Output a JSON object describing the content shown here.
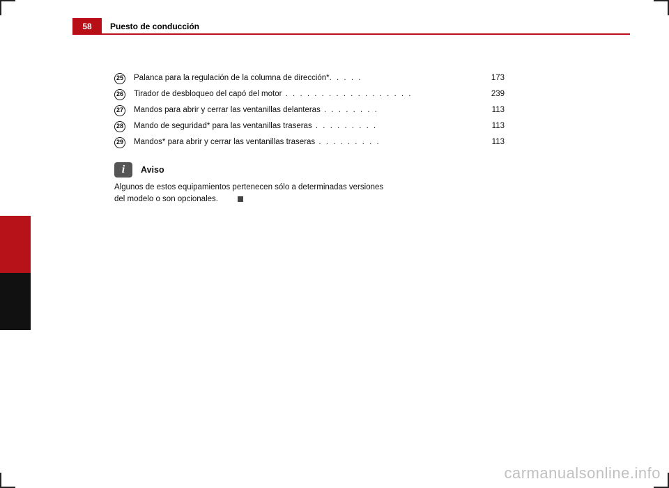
{
  "page_number": "58",
  "section_title": "Puesto de conducción",
  "toc": [
    {
      "num": "25",
      "text": "Palanca para la regulación de la columna de dirección*",
      "dots": ". . . . .",
      "page": "173"
    },
    {
      "num": "26",
      "text": "Tirador de desbloqueo del capó del motor",
      "dots": " . . . . . . . . . . . . . . . . . .",
      "page": "239"
    },
    {
      "num": "27",
      "text": "Mandos para abrir y cerrar las ventanillas delanteras",
      "dots": " . . . . . . . .",
      "page": "113"
    },
    {
      "num": "28",
      "text": "Mando de seguridad* para las ventanillas traseras",
      "dots": "  . . . . . . . . .",
      "page": "113"
    },
    {
      "num": "29",
      "text": "Mandos* para abrir y cerrar las ventanillas traseras",
      "dots": "  . . . . . . . . .",
      "page": "113"
    }
  ],
  "notice": {
    "heading": "Aviso",
    "body_line1": "Algunos de estos equipamientos pertenecen sólo a determinadas versiones",
    "body_line2": "del modelo o son opcionales."
  },
  "watermark": "carmanualsonline.info"
}
